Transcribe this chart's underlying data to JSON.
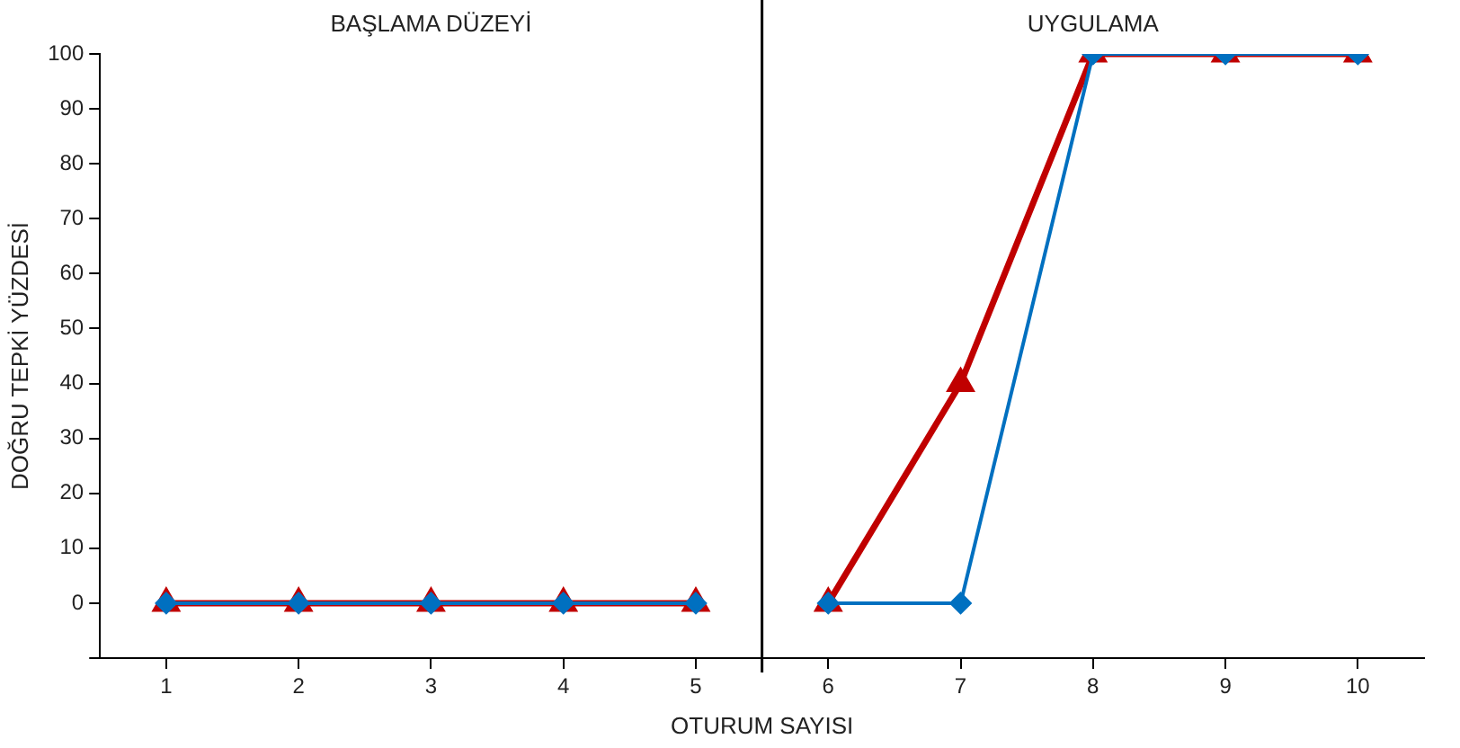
{
  "chart_data": {
    "type": "line",
    "xlabel": "OTURUM SAYISI",
    "ylabel": "DOĞRU TEPKİ YÜZDESİ",
    "annotations": [
      "BAŞLAMA DÜZEYİ",
      "UYGULAMA"
    ],
    "xlim": [
      0.5,
      10.5
    ],
    "xticks": [
      1,
      2,
      3,
      4,
      5,
      6,
      7,
      8,
      9,
      10
    ],
    "ylim": [
      -10,
      100
    ],
    "yticks": [
      {
        "value": -10,
        "label": null
      },
      0,
      10,
      20,
      30,
      40,
      50,
      60,
      70,
      80,
      90,
      100
    ],
    "series": [
      {
        "color": "#c00000",
        "marker": "triangle",
        "x": [
          1,
          2,
          3,
          4,
          5
        ],
        "values": [
          0,
          0,
          0,
          0,
          0
        ]
      },
      {
        "color": "#0070c0",
        "marker": "diamond",
        "x": [
          1,
          2,
          3,
          4,
          5
        ],
        "values": [
          0,
          0,
          0,
          0,
          0
        ]
      },
      {
        "color": "#c00000",
        "marker": "triangle",
        "x": [
          6,
          7,
          8,
          9,
          10
        ],
        "values": [
          0,
          40,
          100,
          100,
          100
        ]
      },
      {
        "color": "#0070c0",
        "marker": "diamond",
        "x": [
          6,
          7,
          8,
          9,
          10
        ],
        "values": [
          0,
          0,
          100,
          100,
          100
        ]
      }
    ],
    "ref_lines": [
      {
        "axis": "x",
        "value": 5.5,
        "color": "#000000"
      }
    ],
    "grid": false,
    "legend": false
  }
}
